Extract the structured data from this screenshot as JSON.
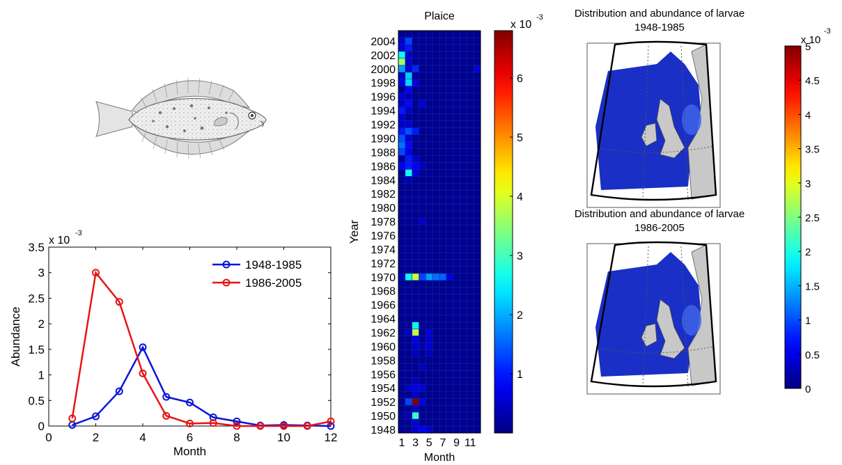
{
  "chart_data": [
    {
      "type": "line",
      "title": "",
      "xlabel": "Month",
      "ylabel": "Abundance",
      "exponent_label": "x 10",
      "exponent_power": "-3",
      "xlim": [
        0,
        12
      ],
      "ylim": [
        0,
        3.5
      ],
      "xticks": [
        "0",
        "2",
        "4",
        "6",
        "8",
        "10",
        "12"
      ],
      "yticks": [
        "0",
        "0.5",
        "1",
        "1.5",
        "2",
        "2.5",
        "3",
        "3.5"
      ],
      "legend_position": "top-right",
      "x": [
        1,
        2,
        3,
        4,
        5,
        6,
        7,
        8,
        9,
        10,
        11,
        12
      ],
      "series": [
        {
          "name": "1948-1985",
          "color": "#0a14d8",
          "values": [
            0.02,
            0.19,
            0.68,
            1.54,
            0.57,
            0.46,
            0.17,
            0.09,
            0.01,
            0.02,
            0.01,
            0.0
          ]
        },
        {
          "name": "1986-2005",
          "color": "#e81414",
          "values": [
            0.15,
            3.0,
            2.43,
            1.03,
            0.2,
            0.05,
            0.06,
            0.0,
            0.0,
            0.0,
            0.0,
            0.09
          ]
        }
      ]
    },
    {
      "type": "heatmap",
      "title": "Plaice",
      "xlabel": "Month",
      "ylabel": "Year",
      "xticks": [
        "1",
        "3",
        "5",
        "7",
        "9",
        "11"
      ],
      "yticks": [
        "2004",
        "2002",
        "2000",
        "1998",
        "1996",
        "1994",
        "1992",
        "1990",
        "1988",
        "1986",
        "1984",
        "1982",
        "1980",
        "1978",
        "1976",
        "1974",
        "1972",
        "1970",
        "1968",
        "1966",
        "1964",
        "1962",
        "1960",
        "1958",
        "1956",
        "1954",
        "1952",
        "1950",
        "1948"
      ],
      "year_range": [
        1948,
        2005
      ],
      "months": 12,
      "colorbar_ticks": [
        "1",
        "2",
        "3",
        "4",
        "5",
        "6"
      ],
      "colorbar_max": 6.8,
      "colorbar_exponent_label": "x 10",
      "colorbar_exponent_power": "-3",
      "cells": [
        {
          "year": 2004,
          "month": 1,
          "value": 0.5
        },
        {
          "year": 2004,
          "month": 2,
          "value": 1.3
        },
        {
          "year": 2003,
          "month": 1,
          "value": 0.6
        },
        {
          "year": 2003,
          "month": 2,
          "value": 1.0
        },
        {
          "year": 2002,
          "month": 1,
          "value": 2.6
        },
        {
          "year": 2002,
          "month": 2,
          "value": 0.5
        },
        {
          "year": 2001,
          "month": 1,
          "value": 3.6
        },
        {
          "year": 2001,
          "month": 2,
          "value": 0.6
        },
        {
          "year": 2000,
          "month": 1,
          "value": 1.9
        },
        {
          "year": 2000,
          "month": 2,
          "value": 0.5
        },
        {
          "year": 2000,
          "month": 3,
          "value": 1.1
        },
        {
          "year": 1999,
          "month": 2,
          "value": 2.2
        },
        {
          "year": 1999,
          "month": 1,
          "value": 0.5
        },
        {
          "year": 1998,
          "month": 2,
          "value": 2.3
        },
        {
          "year": 1998,
          "month": 1,
          "value": 0.7
        },
        {
          "year": 1998,
          "month": 3,
          "value": 0.6
        },
        {
          "year": 1997,
          "month": 2,
          "value": 0.8
        },
        {
          "year": 1996,
          "month": 1,
          "value": 0.6
        },
        {
          "year": 1996,
          "month": 2,
          "value": 0.4
        },
        {
          "year": 1995,
          "month": 1,
          "value": 0.5
        },
        {
          "year": 1995,
          "month": 2,
          "value": 0.9
        },
        {
          "year": 1995,
          "month": 4,
          "value": 0.6
        },
        {
          "year": 1994,
          "month": 1,
          "value": 1.0
        },
        {
          "year": 1994,
          "month": 2,
          "value": 0.5
        },
        {
          "year": 1993,
          "month": 1,
          "value": 0.6
        },
        {
          "year": 1992,
          "month": 1,
          "value": 0.5
        },
        {
          "year": 1992,
          "month": 2,
          "value": 0.6
        },
        {
          "year": 1991,
          "month": 1,
          "value": 1.0
        },
        {
          "year": 1991,
          "month": 2,
          "value": 1.4
        },
        {
          "year": 1991,
          "month": 3,
          "value": 1.0
        },
        {
          "year": 1990,
          "month": 1,
          "value": 1.4
        },
        {
          "year": 1990,
          "month": 2,
          "value": 0.6
        },
        {
          "year": 1989,
          "month": 1,
          "value": 1.6
        },
        {
          "year": 1989,
          "month": 2,
          "value": 0.9
        },
        {
          "year": 1988,
          "month": 1,
          "value": 1.3
        },
        {
          "year": 1988,
          "month": 2,
          "value": 0.7
        },
        {
          "year": 1987,
          "month": 2,
          "value": 1.0
        },
        {
          "year": 1987,
          "month": 3,
          "value": 0.5
        },
        {
          "year": 1986,
          "month": 1,
          "value": 0.8
        },
        {
          "year": 1986,
          "month": 2,
          "value": 1.0
        },
        {
          "year": 1986,
          "month": 3,
          "value": 0.8
        },
        {
          "year": 1986,
          "month": 4,
          "value": 0.5
        },
        {
          "year": 1985,
          "month": 2,
          "value": 2.6
        },
        {
          "year": 1985,
          "month": 3,
          "value": 0.6
        },
        {
          "year": 1984,
          "month": 2,
          "value": 0.4
        },
        {
          "year": 1978,
          "month": 4,
          "value": 0.5
        },
        {
          "year": 1970,
          "month": 1,
          "value": 0.4
        },
        {
          "year": 1970,
          "month": 2,
          "value": 2.6
        },
        {
          "year": 1970,
          "month": 3,
          "value": 3.9
        },
        {
          "year": 1970,
          "month": 4,
          "value": 1.3
        },
        {
          "year": 1970,
          "month": 5,
          "value": 1.9
        },
        {
          "year": 1970,
          "month": 6,
          "value": 1.6
        },
        {
          "year": 1970,
          "month": 7,
          "value": 1.5
        },
        {
          "year": 1970,
          "month": 8,
          "value": 0.6
        },
        {
          "year": 1963,
          "month": 3,
          "value": 2.6
        },
        {
          "year": 1962,
          "month": 3,
          "value": 3.8
        },
        {
          "year": 1962,
          "month": 2,
          "value": 0.5
        },
        {
          "year": 1962,
          "month": 5,
          "value": 0.6
        },
        {
          "year": 1961,
          "month": 3,
          "value": 0.7
        },
        {
          "year": 1961,
          "month": 5,
          "value": 0.6
        },
        {
          "year": 1960,
          "month": 3,
          "value": 0.5
        },
        {
          "year": 1960,
          "month": 4,
          "value": 0.4
        },
        {
          "year": 1960,
          "month": 5,
          "value": 0.5
        },
        {
          "year": 1959,
          "month": 3,
          "value": 0.4
        },
        {
          "year": 1959,
          "month": 5,
          "value": 0.4
        },
        {
          "year": 1957,
          "month": 4,
          "value": 0.4
        },
        {
          "year": 1955,
          "month": 3,
          "value": 0.4
        },
        {
          "year": 1954,
          "month": 2,
          "value": 0.5
        },
        {
          "year": 1954,
          "month": 3,
          "value": 0.7
        },
        {
          "year": 1954,
          "month": 4,
          "value": 0.6
        },
        {
          "year": 1953,
          "month": 3,
          "value": 0.5
        },
        {
          "year": 1952,
          "month": 2,
          "value": 1.3
        },
        {
          "year": 1952,
          "month": 3,
          "value": 6.8
        },
        {
          "year": 1952,
          "month": 4,
          "value": 0.7
        },
        {
          "year": 1951,
          "month": 3,
          "value": 0.5
        },
        {
          "year": 1950,
          "month": 3,
          "value": 2.9
        },
        {
          "year": 1950,
          "month": 2,
          "value": 0.4
        },
        {
          "year": 1949,
          "month": 3,
          "value": 0.6
        },
        {
          "year": 1948,
          "month": 3,
          "value": 0.5
        },
        {
          "year": 1948,
          "month": 4,
          "value": 0.8
        },
        {
          "year": 1948,
          "month": 5,
          "value": 0.5
        },
        {
          "year": 2000,
          "month": 12,
          "value": 0.6
        }
      ]
    },
    {
      "type": "heatmap",
      "title": "Distribution and abundance of larvae",
      "subtitle": "1948-1985"
    },
    {
      "type": "heatmap",
      "title": "Distribution and abundance of larvae",
      "subtitle": "1986-2005"
    },
    {
      "type": "heatmap",
      "colorbar_ticks": [
        "0",
        "0.5",
        "1",
        "1.5",
        "2",
        "2.5",
        "3",
        "3.5",
        "4",
        "4.5",
        "5"
      ],
      "colorbar_max": 5,
      "colorbar_exponent_label": "x 10",
      "colorbar_exponent_power": "-3"
    }
  ]
}
